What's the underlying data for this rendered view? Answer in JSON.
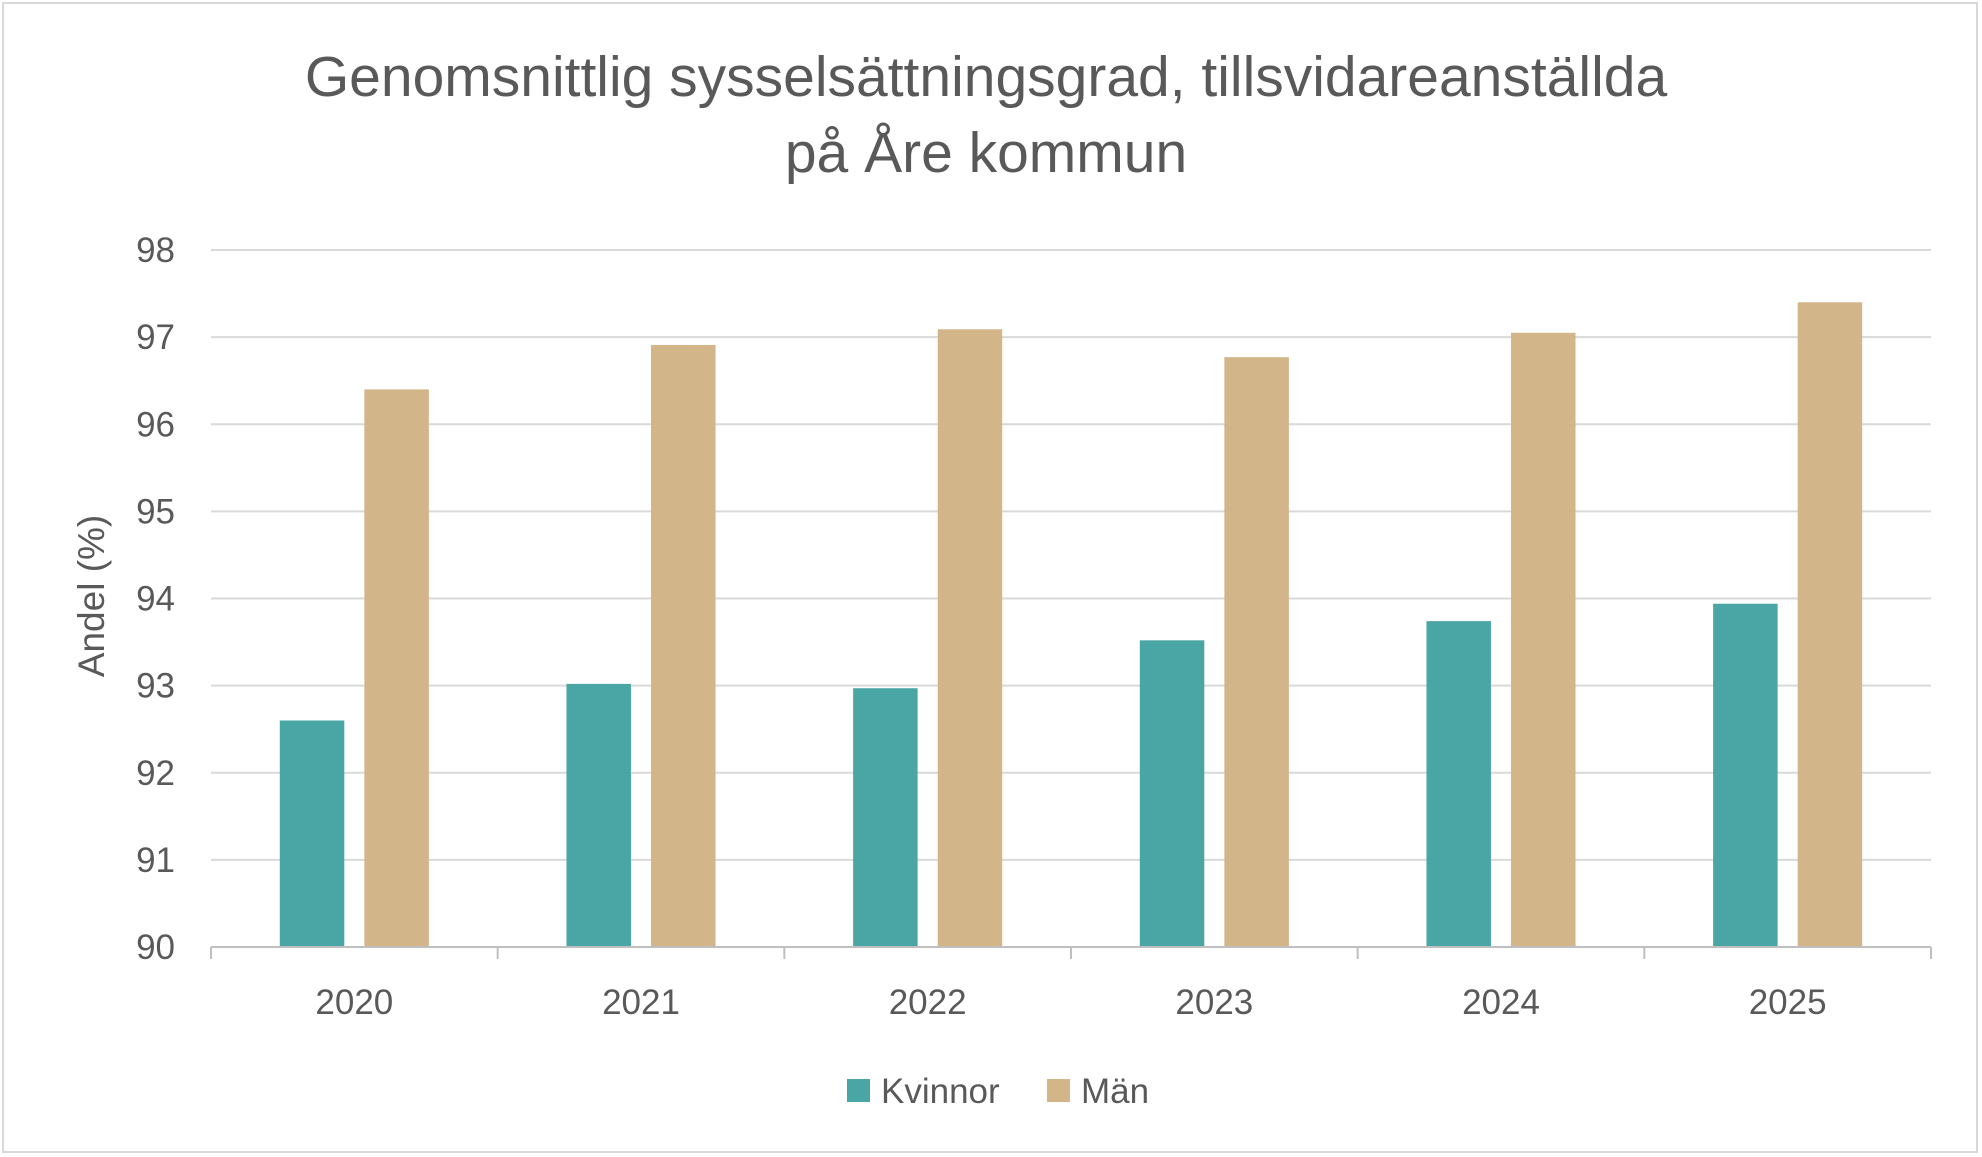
{
  "chart_data": {
    "type": "bar",
    "title_lines": [
      "Genomsnittlig sysselsättningsgrad, tillsvidareanställda",
      "på Åre kommun"
    ],
    "xlabel": "",
    "ylabel": "Andel (%)",
    "ylim": [
      90,
      98
    ],
    "yticks": [
      "90",
      "91",
      "92",
      "93",
      "94",
      "95",
      "96",
      "97",
      "98"
    ],
    "categories": [
      "2020",
      "2021",
      "2022",
      "2023",
      "2024",
      "2025"
    ],
    "series": [
      {
        "name": "Kvinnor",
        "color": "#4aa5a5",
        "values": [
          92.6,
          93.02,
          92.97,
          93.52,
          93.74,
          93.94
        ]
      },
      {
        "name": "Män",
        "color": "#d2b589",
        "values": [
          96.4,
          96.91,
          97.09,
          96.77,
          97.05,
          97.4
        ]
      }
    ],
    "grid": true,
    "legend_position": "bottom",
    "colors": {
      "text": "#595959",
      "grid": "#d9d9d9",
      "axis": "#bfbfbf"
    }
  }
}
